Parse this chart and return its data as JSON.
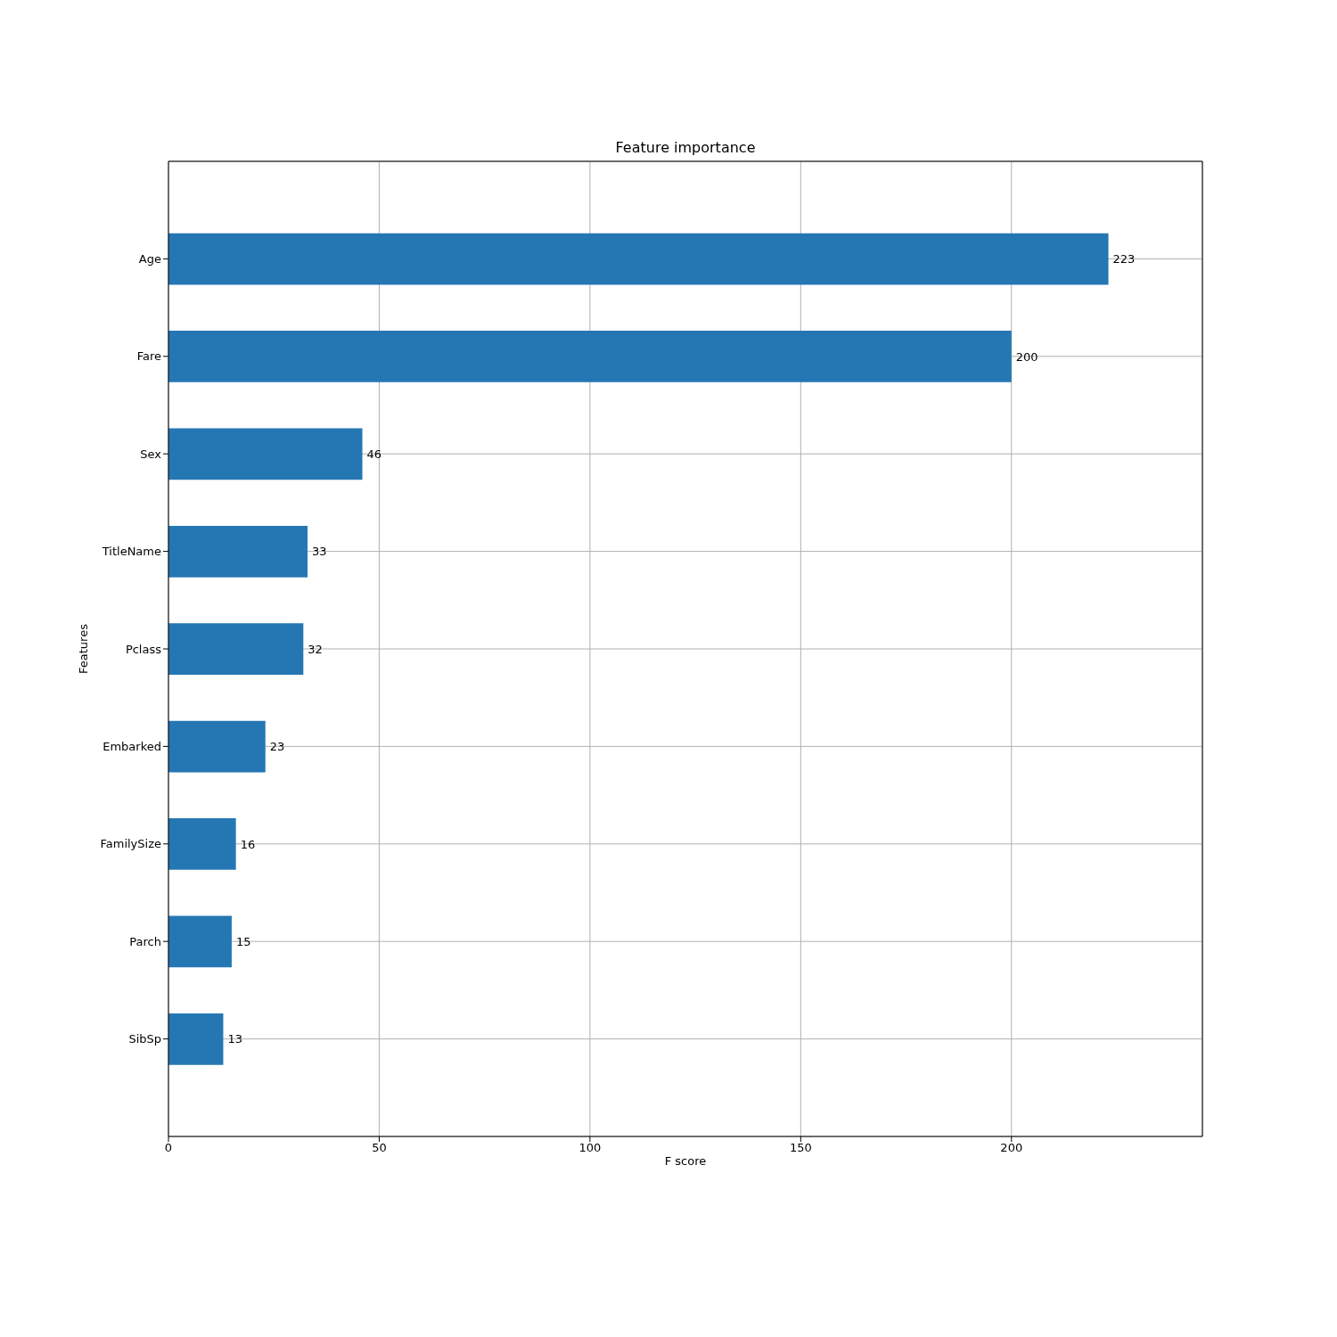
{
  "chart_data": {
    "type": "bar",
    "orientation": "horizontal",
    "title": "Feature importance",
    "xlabel": "F score",
    "ylabel": "Features",
    "categories": [
      "Age",
      "Fare",
      "Sex",
      "TitleName",
      "Pclass",
      "Embarked",
      "FamilySize",
      "Parch",
      "SibSp"
    ],
    "values": [
      223,
      200,
      46,
      33,
      32,
      23,
      16,
      15,
      13
    ],
    "color": "#2477b3",
    "xlim": [
      0,
      245.3
    ],
    "xticks": [
      0,
      50,
      100,
      150,
      200
    ],
    "grid": true,
    "data_labels": true
  }
}
